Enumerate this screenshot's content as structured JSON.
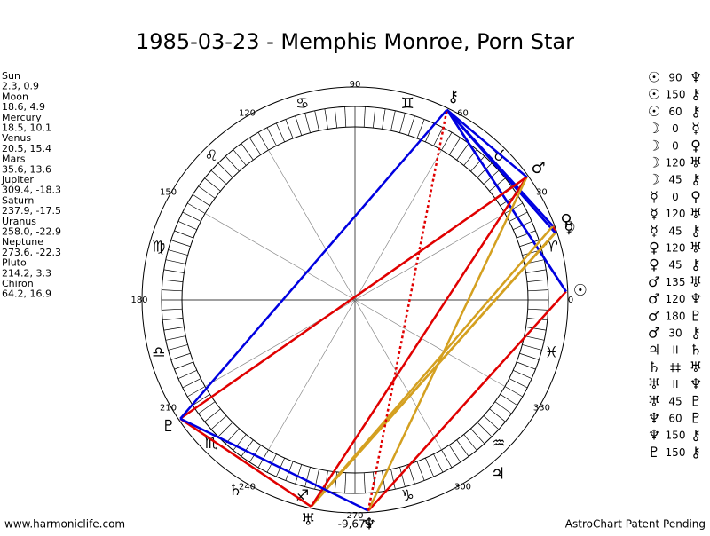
{
  "title": "1985-03-23 - Memphis Monroe, Porn Star",
  "planets": [
    {
      "name": "Sun",
      "position": "2.3, 0.9",
      "glyph": "☉"
    },
    {
      "name": "Moon",
      "position": "18.6, 4.9",
      "glyph": "☽"
    },
    {
      "name": "Mercury",
      "position": "18.5, 10.1",
      "glyph": "☿"
    },
    {
      "name": "Venus",
      "position": "20.5, 15.4",
      "glyph": "♀"
    },
    {
      "name": "Mars",
      "position": "35.6, 13.6",
      "glyph": "♂"
    },
    {
      "name": "Jupiter",
      "position": "309.4, -18.3",
      "glyph": "♃"
    },
    {
      "name": "Saturn",
      "position": "237.9, -17.5",
      "glyph": "♄"
    },
    {
      "name": "Uranus",
      "position": "258.0, -22.9",
      "glyph": "♅"
    },
    {
      "name": "Neptune",
      "position": "273.6, -22.3",
      "glyph": "♆"
    },
    {
      "name": "Pluto",
      "position": "214.2, 3.3",
      "glyph": "♇"
    },
    {
      "name": "Chiron",
      "position": "64.2, 16.9",
      "glyph": "⚷"
    }
  ],
  "aspects": [
    {
      "a": "☉",
      "angle": "90",
      "b": "♆",
      "color": "#e00000",
      "dotted": false
    },
    {
      "a": "☉",
      "angle": "150",
      "b": "⚷",
      "color": "#0000e0",
      "dotted": false
    },
    {
      "a": "☉",
      "angle": "60",
      "b": "⚷",
      "color": "#0000e0",
      "dotted": false
    },
    {
      "a": "☽",
      "angle": "0",
      "b": "☿",
      "color": "#e00000",
      "dotted": false
    },
    {
      "a": "☽",
      "angle": "0",
      "b": "♀",
      "color": "#e00000",
      "dotted": false
    },
    {
      "a": "☽",
      "angle": "120",
      "b": "♅",
      "color": "#d4a020",
      "dotted": false
    },
    {
      "a": "☽",
      "angle": "45",
      "b": "⚷",
      "color": "#0000e0",
      "dotted": false
    },
    {
      "a": "☿",
      "angle": "0",
      "b": "♀",
      "color": "#e00000",
      "dotted": false
    },
    {
      "a": "☿",
      "angle": "120",
      "b": "♅",
      "color": "#d4a020",
      "dotted": false
    },
    {
      "a": "☿",
      "angle": "45",
      "b": "⚷",
      "color": "#0000e0",
      "dotted": false
    },
    {
      "a": "♀",
      "angle": "120",
      "b": "♅",
      "color": "#d4a020",
      "dotted": false
    },
    {
      "a": "♀",
      "angle": "45",
      "b": "⚷",
      "color": "#0000e0",
      "dotted": false
    },
    {
      "a": "♂",
      "angle": "135",
      "b": "♅",
      "color": "#e00000",
      "dotted": false
    },
    {
      "a": "♂",
      "angle": "120",
      "b": "♆",
      "color": "#d4a020",
      "dotted": false
    },
    {
      "a": "♂",
      "angle": "180",
      "b": "♇",
      "color": "#e00000",
      "dotted": false
    },
    {
      "a": "♂",
      "angle": "30",
      "b": "⚷",
      "color": "#0000e0",
      "dotted": false
    },
    {
      "a": "♃",
      "angle": "II",
      "b": "♄",
      "color": "#d4a020",
      "dotted": true
    },
    {
      "a": "♄",
      "angle": "‡‡",
      "b": "♅",
      "color": "#d4a020",
      "dotted": true
    },
    {
      "a": "♅",
      "angle": "II",
      "b": "♆",
      "color": "#d4a020",
      "dotted": true
    },
    {
      "a": "♅",
      "angle": "45",
      "b": "♇",
      "color": "#e00000",
      "dotted": false
    },
    {
      "a": "♆",
      "angle": "60",
      "b": "♇",
      "color": "#0000e0",
      "dotted": false
    },
    {
      "a": "♆",
      "angle": "150",
      "b": "⚷",
      "color": "#e00000",
      "dotted": true
    },
    {
      "a": "♇",
      "angle": "150",
      "b": "⚷",
      "color": "#0000e0",
      "dotted": false
    }
  ],
  "signs": [
    "♈",
    "♉",
    "♊",
    "♋",
    "♌",
    "♍",
    "♎",
    "♏",
    "♐",
    "♑",
    "♒",
    "♓"
  ],
  "degree_labels": [
    0,
    30,
    60,
    90,
    120,
    150,
    180,
    210,
    240,
    270,
    300,
    330
  ],
  "bottom_note": "-9,675",
  "footer_left": "www.harmoniclife.com",
  "footer_right": "AstroChart Patent Pending"
}
